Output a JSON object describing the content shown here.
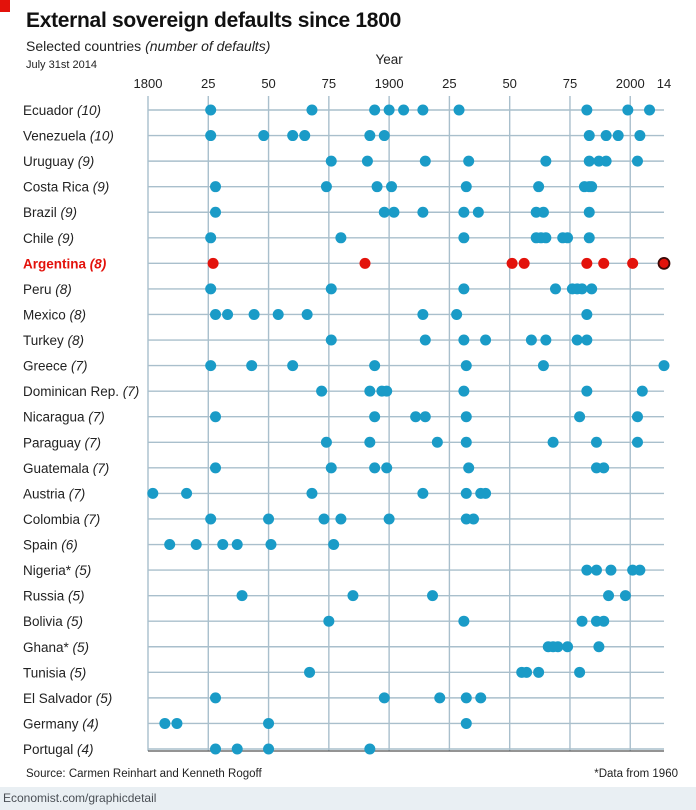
{
  "header": {
    "title": "External sovereign defaults since 1800",
    "subtitle": "Selected countries",
    "subtitle_note": "(number of defaults)",
    "date": "July 31st 2014"
  },
  "footer": {
    "source": "Source: Carmen Reinhart and Kenneth Rogoff",
    "footnote": "*Data from 1960",
    "credit": "Economist.com/graphicdetail"
  },
  "colors": {
    "brand_red": "#e3120b",
    "dot_blue": "#1a9bc7",
    "dot_red": "#e3120b",
    "gridline": "#a9bfcc"
  },
  "chart_data": {
    "type": "scatter",
    "title": "External sovereign defaults since 1800",
    "xlabel": "Year",
    "xlim": [
      1800,
      2014
    ],
    "x_ticks": [
      {
        "value": 1800,
        "label": "1800"
      },
      {
        "value": 1825,
        "label": "25"
      },
      {
        "value": 1850,
        "label": "50"
      },
      {
        "value": 1875,
        "label": "75"
      },
      {
        "value": 1900,
        "label": "1900"
      },
      {
        "value": 1925,
        "label": "25"
      },
      {
        "value": 1950,
        "label": "50"
      },
      {
        "value": 1975,
        "label": "75"
      },
      {
        "value": 2000,
        "label": "2000"
      },
      {
        "value": 2014,
        "label": "14"
      }
    ],
    "highlight_country": "Argentina",
    "series": [
      {
        "name": "Ecuador",
        "count": "(10)",
        "years": [
          1826,
          1868,
          1894,
          1900,
          1906,
          1914,
          1929,
          1982,
          1999,
          2008
        ]
      },
      {
        "name": "Venezuela",
        "count": "(10)",
        "years": [
          1826,
          1848,
          1860,
          1865,
          1892,
          1898,
          1983,
          1990,
          1995,
          2004
        ]
      },
      {
        "name": "Uruguay",
        "count": "(9)",
        "years": [
          1876,
          1891,
          1915,
          1933,
          1965,
          1983,
          1987,
          1990,
          2003
        ]
      },
      {
        "name": "Costa Rica",
        "count": "(9)",
        "years": [
          1828,
          1874,
          1895,
          1901,
          1932,
          1962,
          1981,
          1983,
          1984
        ]
      },
      {
        "name": "Brazil",
        "count": "(9)",
        "years": [
          1828,
          1898,
          1902,
          1914,
          1931,
          1937,
          1961,
          1964,
          1983
        ]
      },
      {
        "name": "Chile",
        "count": "(9)",
        "years": [
          1826,
          1880,
          1931,
          1961,
          1963,
          1965,
          1972,
          1974,
          1983
        ]
      },
      {
        "name": "Argentina",
        "count": "(8)",
        "highlight": true,
        "years": [
          1827,
          1890,
          1951,
          1956,
          1982,
          1989,
          2001,
          2014
        ]
      },
      {
        "name": "Peru",
        "count": "(8)",
        "years": [
          1826,
          1876,
          1931,
          1969,
          1976,
          1978,
          1980,
          1984
        ]
      },
      {
        "name": "Mexico",
        "count": "(8)",
        "years": [
          1828,
          1833,
          1844,
          1854,
          1866,
          1914,
          1928,
          1982
        ]
      },
      {
        "name": "Turkey",
        "count": "(8)",
        "years": [
          1876,
          1915,
          1931,
          1940,
          1959,
          1965,
          1978,
          1982
        ]
      },
      {
        "name": "Greece",
        "count": "(7)",
        "years": [
          1826,
          1843,
          1860,
          1894,
          1932,
          1964,
          2014
        ]
      },
      {
        "name": "Dominican Rep.",
        "count": "(7)",
        "years": [
          1872,
          1892,
          1897,
          1899,
          1931,
          1982,
          2005
        ]
      },
      {
        "name": "Nicaragua",
        "count": "(7)",
        "years": [
          1828,
          1894,
          1911,
          1915,
          1932,
          1979,
          2003
        ]
      },
      {
        "name": "Paraguay",
        "count": "(7)",
        "years": [
          1874,
          1892,
          1920,
          1932,
          1968,
          1986,
          2003
        ]
      },
      {
        "name": "Guatemala",
        "count": "(7)",
        "years": [
          1828,
          1876,
          1894,
          1899,
          1933,
          1986,
          1989
        ]
      },
      {
        "name": "Austria",
        "count": "(7)",
        "years": [
          1802,
          1816,
          1868,
          1914,
          1932,
          1938,
          1940
        ]
      },
      {
        "name": "Colombia",
        "count": "(7)",
        "years": [
          1826,
          1850,
          1873,
          1880,
          1900,
          1932,
          1935
        ]
      },
      {
        "name": "Spain",
        "count": "(6)",
        "years": [
          1809,
          1820,
          1831,
          1837,
          1851,
          1877
        ]
      },
      {
        "name": "Nigeria*",
        "count": "(5)",
        "years": [
          1982,
          1986,
          1992,
          2001,
          2004
        ]
      },
      {
        "name": "Russia",
        "count": "(5)",
        "years": [
          1839,
          1885,
          1918,
          1991,
          1998
        ]
      },
      {
        "name": "Bolivia",
        "count": "(5)",
        "years": [
          1875,
          1931,
          1980,
          1986,
          1989
        ]
      },
      {
        "name": "Ghana*",
        "count": "(5)",
        "years": [
          1966,
          1968,
          1970,
          1974,
          1987
        ]
      },
      {
        "name": "Tunisia",
        "count": "(5)",
        "years": [
          1867,
          1955,
          1957,
          1962,
          1979
        ]
      },
      {
        "name": "El Salvador",
        "count": "(5)",
        "years": [
          1828,
          1898,
          1921,
          1932,
          1938
        ]
      },
      {
        "name": "Germany",
        "count": "(4)",
        "years": [
          1807,
          1812,
          1850,
          1932
        ]
      },
      {
        "name": "Portugal",
        "count": "(4)",
        "years": [
          1828,
          1837,
          1850,
          1892
        ]
      }
    ]
  }
}
